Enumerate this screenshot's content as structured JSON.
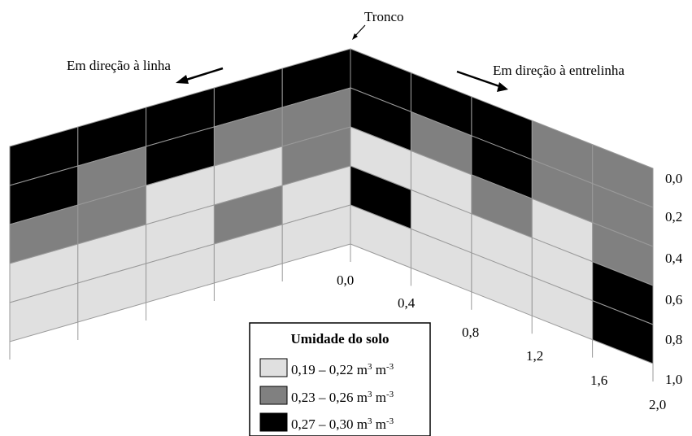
{
  "annotations": {
    "trunk": "Tronco",
    "toward_row": "Em direção à linha",
    "toward_interrow": "Em direção à entrelinha"
  },
  "depth_ticks": [
    "0,0",
    "0,2",
    "0,4",
    "0,6",
    "0,8",
    "1,0"
  ],
  "distance_ticks": [
    "0,0",
    "0,4",
    "0,8",
    "1,2",
    "1,6",
    "2,0"
  ],
  "legend": {
    "title": "Umidade do solo",
    "items": [
      {
        "range": "0,19 – 0,22 m",
        "unit_pow": "3",
        "unit_rest": " m",
        "unit_pow2": "-3",
        "color": "#e0e0e0"
      },
      {
        "range": "0,23 – 0,26 m",
        "unit_pow": "3",
        "unit_rest": " m",
        "unit_pow2": "-3",
        "color": "#808080"
      },
      {
        "range": "0,27 – 0,30 m",
        "unit_pow": "3",
        "unit_rest": " m",
        "unit_pow2": "-3",
        "color": "#000000"
      }
    ]
  },
  "colors": {
    "low": "#e0e0e0",
    "mid": "#808080",
    "high": "#000000",
    "grid": "#9a9a9a"
  },
  "grid": {
    "rows": 5,
    "cols": 5,
    "left_wall_classes": [
      [
        "high",
        "high",
        "high",
        "high",
        "high"
      ],
      [
        "high",
        "mid",
        "high",
        "mid",
        "mid"
      ],
      [
        "mid",
        "mid",
        "low",
        "low",
        "mid"
      ],
      [
        "low",
        "low",
        "low",
        "mid",
        "low"
      ],
      [
        "low",
        "low",
        "low",
        "low",
        "low"
      ]
    ],
    "right_wall_classes": [
      [
        "high",
        "high",
        "high",
        "mid",
        "mid"
      ],
      [
        "high",
        "mid",
        "high",
        "mid",
        "mid"
      ],
      [
        "low",
        "low",
        "mid",
        "low",
        "mid"
      ],
      [
        "high",
        "low",
        "low",
        "low",
        "high"
      ],
      [
        "low",
        "low",
        "low",
        "low",
        "high"
      ]
    ]
  }
}
